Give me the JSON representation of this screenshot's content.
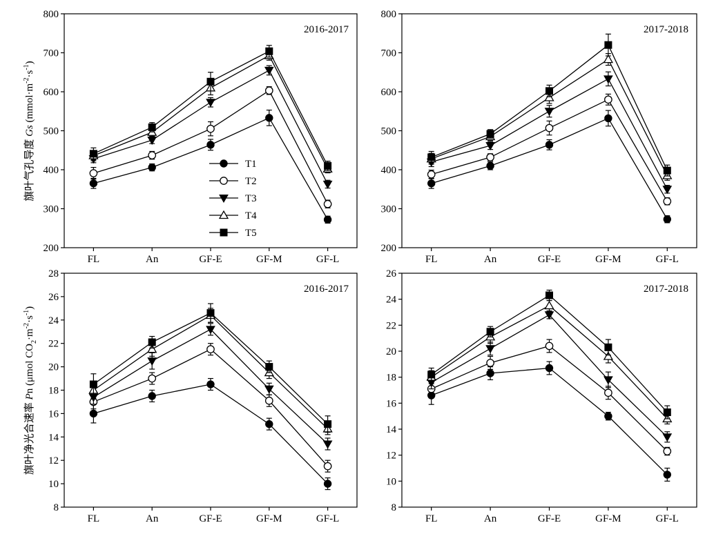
{
  "colors": {
    "line": "#000000",
    "background": "#ffffff"
  },
  "legend": [
    {
      "name": "T1",
      "marker": "circle-filled"
    },
    {
      "name": "T2",
      "marker": "circle-open"
    },
    {
      "name": "T3",
      "marker": "triangle-down-filled"
    },
    {
      "name": "T4",
      "marker": "triangle-up-open"
    },
    {
      "name": "T5",
      "marker": "square-filled"
    }
  ],
  "ylabels": {
    "gs_prefix": "旗叶气孔导度 ",
    "gs_italic": "Gs",
    "gs_unit_a": " (mmol·m",
    "gs_sup1": "-2",
    "gs_unit_b": "·s",
    "gs_sup2": "-1",
    "gs_unit_c": ")",
    "pn_prefix": "旗叶净光合速率 ",
    "pn_italic": "P",
    "pn_rest": "n (μmol CO",
    "pn_sub": "2",
    "pn_unit_a": "·m",
    "pn_sup1": "-2",
    "pn_unit_b": "·s",
    "pn_sup2": "-1",
    "pn_unit_c": ")"
  },
  "chart_data": [
    {
      "type": "line",
      "year": "2016-2017",
      "categories": [
        "FL",
        "An",
        "GF-E",
        "GF-M",
        "GF-L"
      ],
      "ylim": [
        200,
        800
      ],
      "yticks": [
        200,
        300,
        400,
        500,
        600,
        700,
        800
      ],
      "legend_placement": "center",
      "series": [
        {
          "name": "T1",
          "values": [
            365,
            406,
            464,
            533,
            272
          ],
          "errors": [
            13,
            9,
            14,
            20,
            9
          ]
        },
        {
          "name": "T2",
          "values": [
            391,
            437,
            505,
            603,
            312
          ],
          "errors": [
            15,
            10,
            18,
            10,
            10
          ]
        },
        {
          "name": "T3",
          "values": [
            428,
            476,
            573,
            655,
            363
          ],
          "errors": [
            10,
            9,
            12,
            12,
            10
          ]
        },
        {
          "name": "T4",
          "values": [
            436,
            496,
            610,
            693,
            402
          ],
          "errors": [
            13,
            10,
            18,
            12,
            10
          ]
        },
        {
          "name": "T5",
          "values": [
            441,
            509,
            626,
            704,
            410
          ],
          "errors": [
            15,
            12,
            24,
            15,
            12
          ]
        }
      ]
    },
    {
      "type": "line",
      "year": "2017-2018",
      "categories": [
        "FL",
        "An",
        "GF-E",
        "GF-M",
        "GF-L"
      ],
      "ylim": [
        200,
        800
      ],
      "yticks": [
        200,
        300,
        400,
        500,
        600,
        700,
        800
      ],
      "series": [
        {
          "name": "T1",
          "values": [
            365,
            410,
            464,
            532,
            273
          ],
          "errors": [
            13,
            10,
            13,
            20,
            9
          ]
        },
        {
          "name": "T2",
          "values": [
            388,
            432,
            507,
            580,
            319
          ],
          "errors": [
            11,
            9,
            18,
            14,
            9
          ]
        },
        {
          "name": "T3",
          "values": [
            420,
            462,
            550,
            633,
            350
          ],
          "errors": [
            12,
            10,
            15,
            18,
            10
          ]
        },
        {
          "name": "T4",
          "values": [
            428,
            485,
            585,
            683,
            385
          ],
          "errors": [
            14,
            10,
            15,
            15,
            12
          ]
        },
        {
          "name": "T5",
          "values": [
            432,
            492,
            602,
            720,
            398
          ],
          "errors": [
            15,
            11,
            15,
            28,
            14
          ]
        }
      ]
    },
    {
      "type": "line",
      "year": "2016-2017",
      "categories": [
        "FL",
        "An",
        "GF-E",
        "GF-M",
        "GF-L"
      ],
      "ylim": [
        8,
        28
      ],
      "yticks": [
        8,
        10,
        12,
        14,
        16,
        18,
        20,
        22,
        24,
        26,
        28
      ],
      "series": [
        {
          "name": "T1",
          "values": [
            16.0,
            17.5,
            18.5,
            15.1,
            10.0
          ],
          "errors": [
            0.8,
            0.5,
            0.5,
            0.5,
            0.5
          ]
        },
        {
          "name": "T2",
          "values": [
            17.0,
            19.0,
            21.5,
            17.1,
            11.5
          ],
          "errors": [
            0.6,
            0.5,
            0.5,
            0.5,
            0.5
          ]
        },
        {
          "name": "T3",
          "values": [
            17.4,
            20.5,
            23.2,
            18.1,
            13.4
          ],
          "errors": [
            0.6,
            0.7,
            0.5,
            0.5,
            0.5
          ]
        },
        {
          "name": "T4",
          "values": [
            18.0,
            21.5,
            24.4,
            19.5,
            14.7
          ],
          "errors": [
            0.7,
            0.6,
            0.6,
            0.5,
            0.5
          ]
        },
        {
          "name": "T5",
          "values": [
            18.5,
            22.1,
            24.6,
            20.0,
            15.1
          ],
          "errors": [
            0.9,
            0.5,
            0.8,
            0.5,
            0.7
          ]
        }
      ]
    },
    {
      "type": "line",
      "year": "2017-2018",
      "categories": [
        "FL",
        "An",
        "GF-E",
        "GF-M",
        "GF-L"
      ],
      "ylim": [
        8,
        26
      ],
      "yticks": [
        8,
        10,
        12,
        14,
        16,
        18,
        20,
        22,
        24,
        26
      ],
      "series": [
        {
          "name": "T1",
          "values": [
            16.6,
            18.3,
            18.7,
            15.0,
            10.5
          ],
          "errors": [
            0.7,
            0.5,
            0.5,
            0.3,
            0.5
          ]
        },
        {
          "name": "T2",
          "values": [
            17.1,
            19.1,
            20.4,
            16.8,
            12.3
          ],
          "errors": [
            0.6,
            0.5,
            0.5,
            0.5,
            0.3
          ]
        },
        {
          "name": "T3",
          "values": [
            17.6,
            20.2,
            22.8,
            17.8,
            13.4
          ],
          "errors": [
            0.5,
            0.5,
            0.3,
            0.6,
            0.4
          ]
        },
        {
          "name": "T4",
          "values": [
            18.0,
            21.1,
            23.5,
            19.6,
            14.8
          ],
          "errors": [
            0.5,
            0.5,
            0.4,
            0.5,
            0.4
          ]
        },
        {
          "name": "T5",
          "values": [
            18.2,
            21.5,
            24.3,
            20.3,
            15.3
          ],
          "errors": [
            0.5,
            0.4,
            0.4,
            0.6,
            0.5
          ]
        }
      ]
    }
  ]
}
